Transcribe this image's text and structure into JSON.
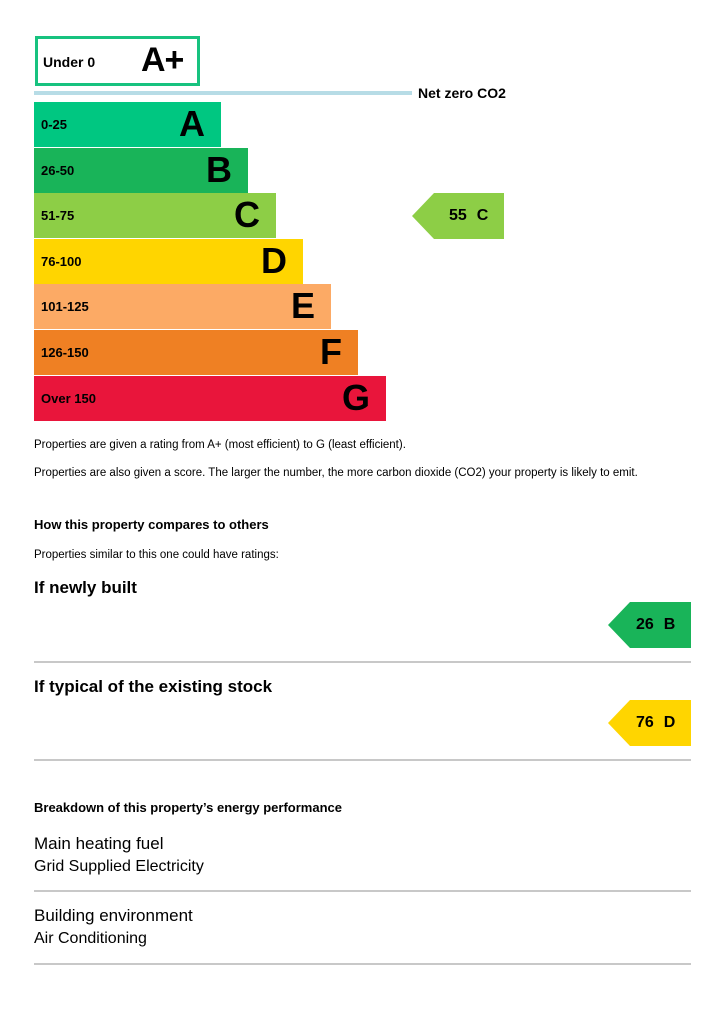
{
  "aplus": {
    "range": "Under 0",
    "letter": "A+",
    "color": "#17c27f"
  },
  "net_zero_label": "Net zero CO2",
  "bands": [
    {
      "range": "0-25",
      "letter": "A",
      "color": "#00c781"
    },
    {
      "range": "26-50",
      "letter": "B",
      "color": "#19b459"
    },
    {
      "range": "51-75",
      "letter": "C",
      "color": "#8dce46"
    },
    {
      "range": "76-100",
      "letter": "D",
      "color": "#ffd500"
    },
    {
      "range": "101-125",
      "letter": "E",
      "color": "#fcaa65"
    },
    {
      "range": "126-150",
      "letter": "F",
      "color": "#ef8023"
    },
    {
      "range": "Over 150",
      "letter": "G",
      "color": "#e9153b"
    }
  ],
  "current_rating": {
    "score": "55",
    "letter": "C",
    "color": "#8dce46"
  },
  "info": {
    "line1": "Properties are given a rating from A+ (most efficient) to G (least efficient).",
    "line2": "Properties are also given a score. The larger the number, the more carbon dioxide (CO2) your property is likely to emit."
  },
  "compare": {
    "heading": "How this property compares to others",
    "subtext": "Properties similar to this one could have ratings:",
    "new_build": {
      "label": "If newly built",
      "score": "26",
      "letter": "B",
      "color": "#19b459"
    },
    "typical": {
      "label": "If typical of the existing stock",
      "score": "76",
      "letter": "D",
      "color": "#ffd500"
    }
  },
  "breakdown": {
    "heading": "Breakdown of this property’s energy performance",
    "items": [
      {
        "label": "Main heating fuel",
        "value": "Grid Supplied Electricity"
      },
      {
        "label": "Building environment",
        "value": "Air Conditioning"
      }
    ]
  }
}
